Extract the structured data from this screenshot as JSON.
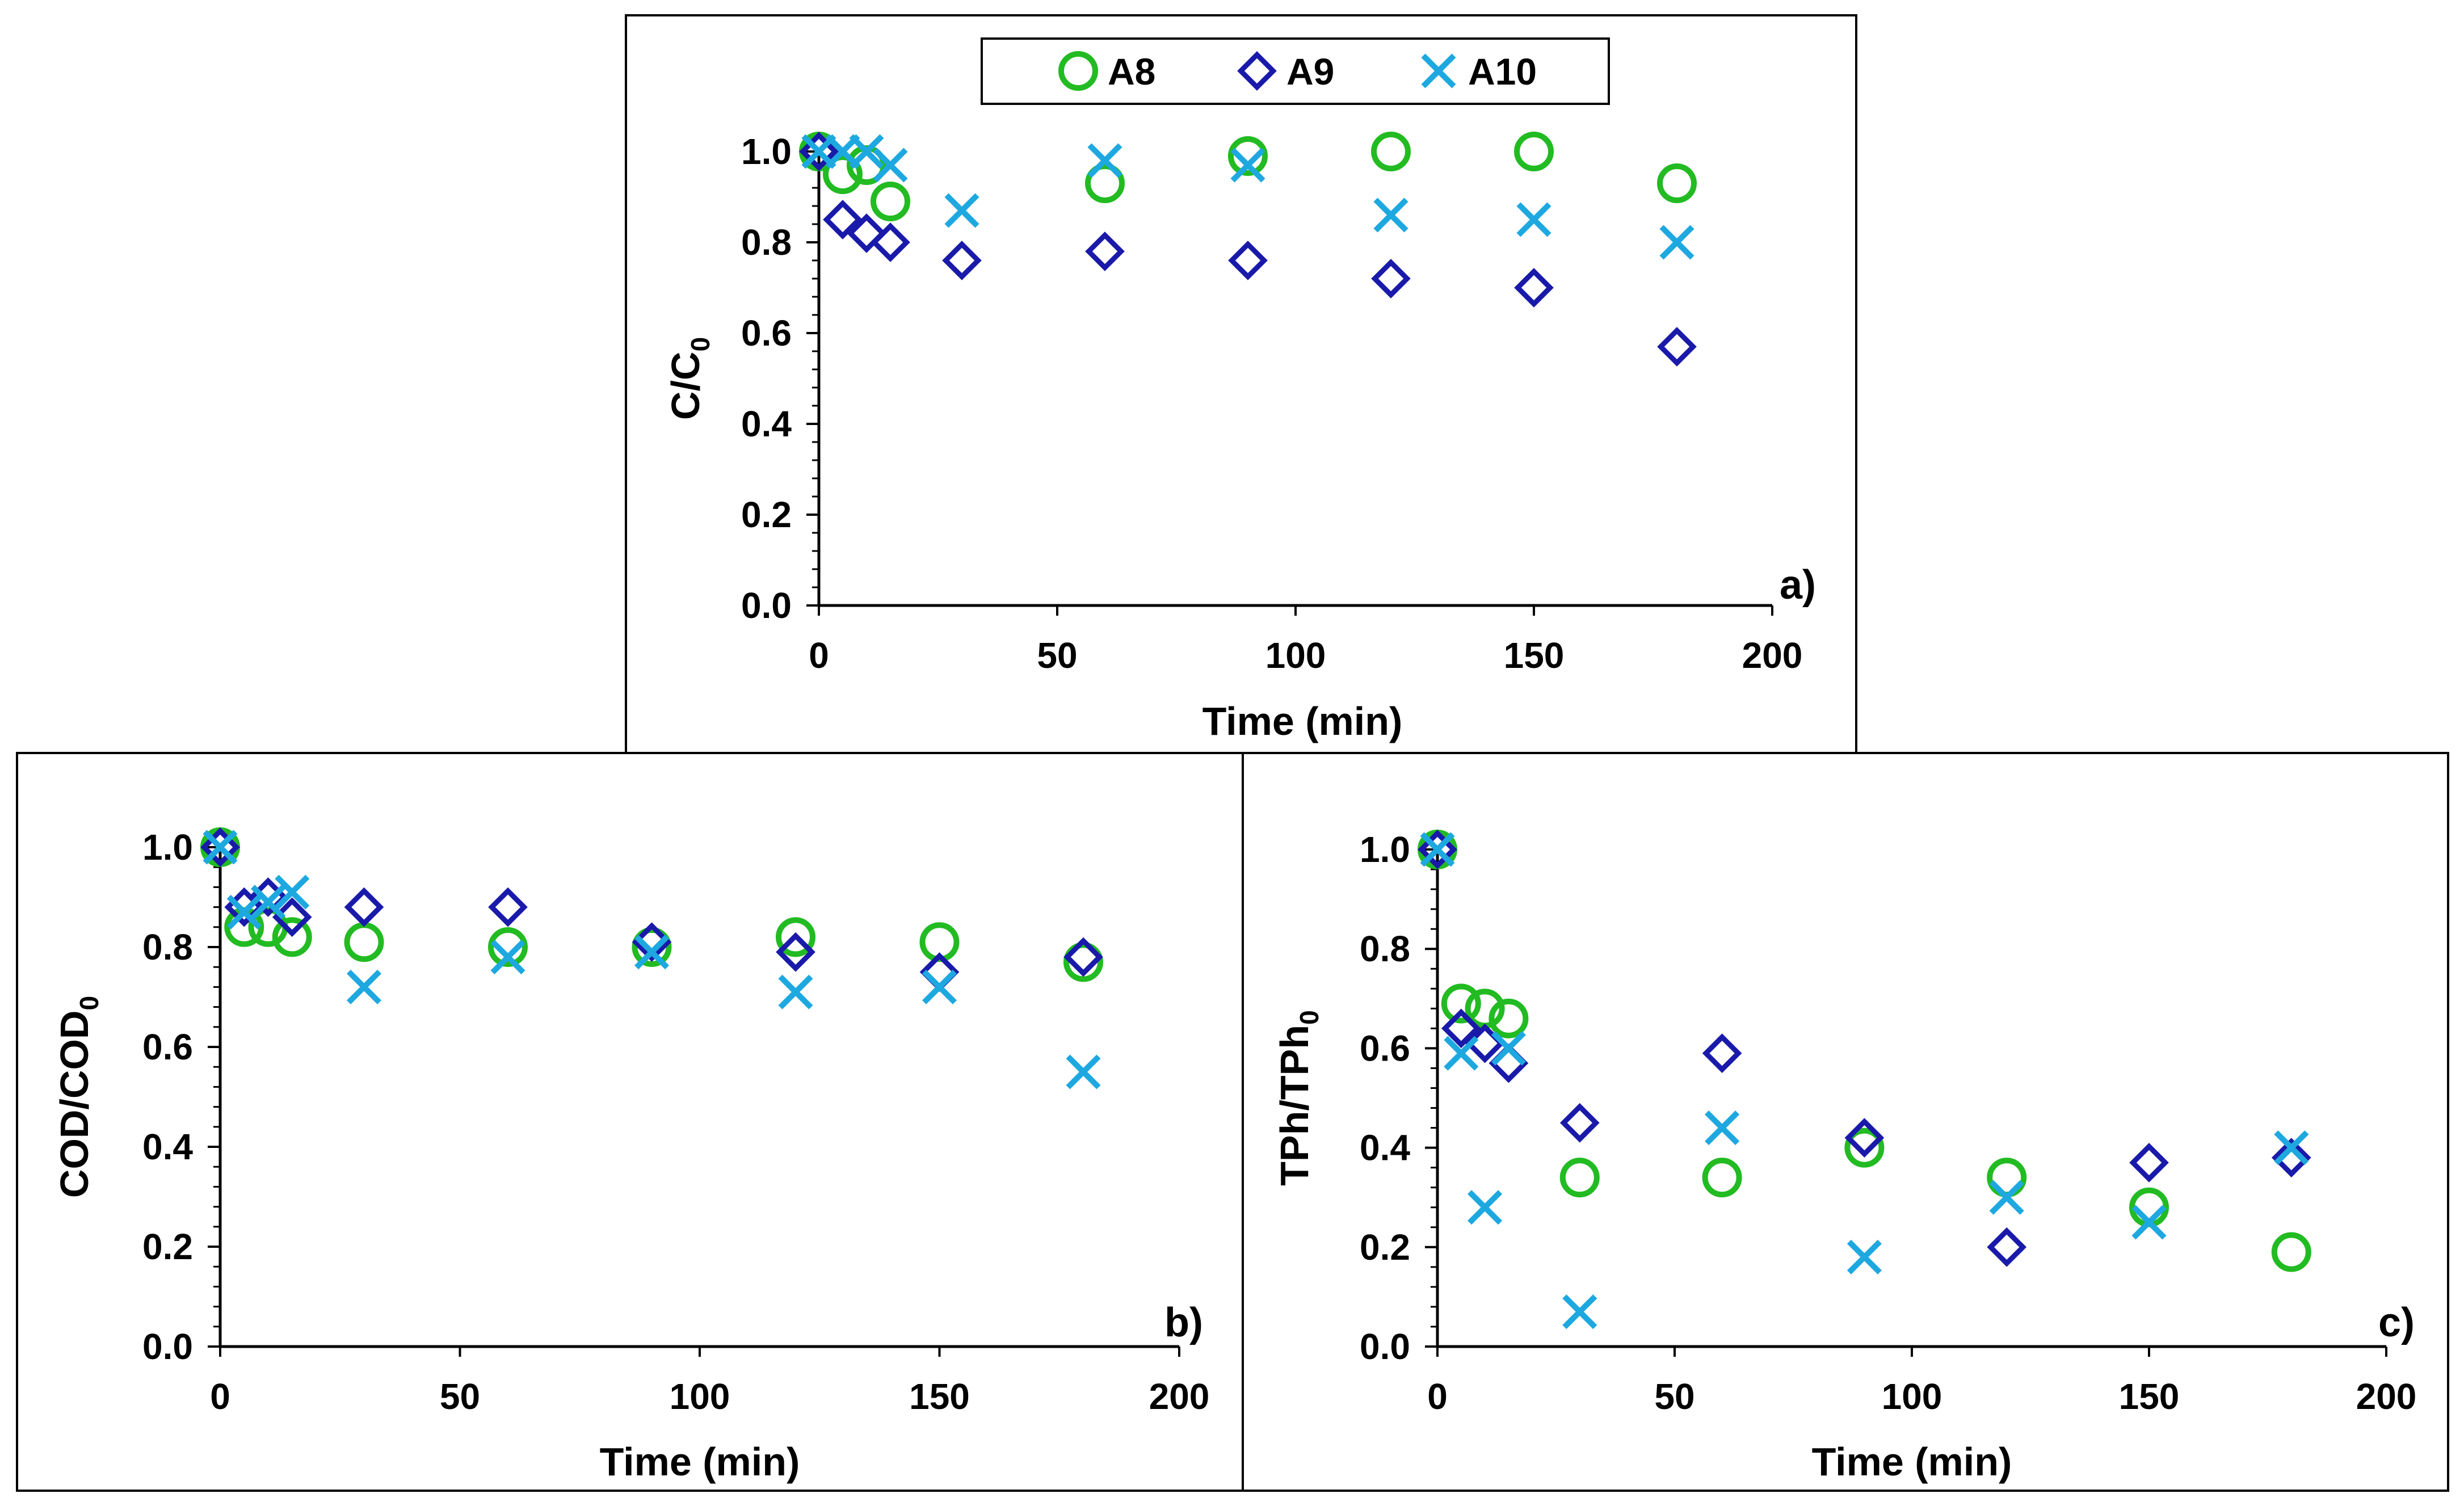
{
  "colors": {
    "A8": "#22bb22",
    "A9": "#1a1aaa",
    "A10": "#1ea8e0"
  },
  "legend": [
    {
      "name": "A8",
      "marker": "circle"
    },
    {
      "name": "A9",
      "marker": "diamond"
    },
    {
      "name": "A10",
      "marker": "cross"
    }
  ],
  "chart_data": [
    {
      "type": "scatter",
      "panel_label": "a)",
      "xlabel": "Time (min)",
      "ylabel": {
        "base": "C/C",
        "sub": "0"
      },
      "xlim": [
        0,
        200
      ],
      "ylim": [
        0,
        1.0
      ],
      "xticks": [
        "0",
        "50",
        "100",
        "150",
        "200"
      ],
      "yticks": [
        "0.0",
        "0.2",
        "0.4",
        "0.6",
        "0.8",
        "1.0"
      ],
      "series": [
        {
          "name": "A8",
          "marker": "circle",
          "x": [
            0,
            5,
            10,
            15,
            60,
            90,
            120,
            150,
            180
          ],
          "y": [
            1.0,
            0.95,
            0.97,
            0.89,
            0.93,
            0.99,
            1.0,
            1.0,
            0.93
          ]
        },
        {
          "name": "A9",
          "marker": "diamond",
          "x": [
            0,
            5,
            10,
            15,
            30,
            60,
            90,
            120,
            150,
            180
          ],
          "y": [
            1.0,
            0.85,
            0.82,
            0.8,
            0.76,
            0.78,
            0.76,
            0.72,
            0.7,
            0.57
          ]
        },
        {
          "name": "A10",
          "marker": "cross",
          "x": [
            0,
            5,
            10,
            15,
            30,
            60,
            90,
            120,
            150,
            180
          ],
          "y": [
            1.0,
            1.0,
            1.0,
            0.97,
            0.87,
            0.98,
            0.97,
            0.86,
            0.85,
            0.8
          ]
        }
      ]
    },
    {
      "type": "scatter",
      "panel_label": "b)",
      "xlabel": "Time (min)",
      "ylabel": {
        "base": "COD/COD",
        "sub": "0"
      },
      "xlim": [
        0,
        200
      ],
      "ylim": [
        0,
        1.0
      ],
      "xticks": [
        "0",
        "50",
        "100",
        "150",
        "200"
      ],
      "yticks": [
        "0.0",
        "0.2",
        "0.4",
        "0.6",
        "0.8",
        "1.0"
      ],
      "series": [
        {
          "name": "A8",
          "marker": "circle",
          "x": [
            0,
            5,
            10,
            15,
            30,
            60,
            90,
            120,
            150,
            180
          ],
          "y": [
            1.0,
            0.84,
            0.84,
            0.82,
            0.81,
            0.8,
            0.8,
            0.82,
            0.81,
            0.77
          ]
        },
        {
          "name": "A9",
          "marker": "diamond",
          "x": [
            0,
            5,
            10,
            15,
            30,
            60,
            90,
            120,
            150,
            180
          ],
          "y": [
            1.0,
            0.88,
            0.9,
            0.86,
            0.88,
            0.88,
            0.81,
            0.79,
            0.75,
            0.78
          ]
        },
        {
          "name": "A10",
          "marker": "cross",
          "x": [
            0,
            5,
            10,
            15,
            30,
            60,
            90,
            120,
            150,
            180
          ],
          "y": [
            1.0,
            0.87,
            0.89,
            0.91,
            0.72,
            0.78,
            0.79,
            0.71,
            0.72,
            0.55
          ]
        }
      ]
    },
    {
      "type": "scatter",
      "panel_label": "c)",
      "xlabel": "Time (min)",
      "ylabel": {
        "base": "TPh/TPh",
        "sub": "0"
      },
      "xlim": [
        0,
        200
      ],
      "ylim": [
        0,
        1.0
      ],
      "xticks": [
        "0",
        "50",
        "100",
        "150",
        "200"
      ],
      "yticks": [
        "0.0",
        "0.2",
        "0.4",
        "0.6",
        "0.8",
        "1.0"
      ],
      "series": [
        {
          "name": "A8",
          "marker": "circle",
          "x": [
            0,
            5,
            10,
            15,
            30,
            60,
            90,
            120,
            150,
            180
          ],
          "y": [
            1.0,
            0.69,
            0.68,
            0.66,
            0.34,
            0.34,
            0.4,
            0.34,
            0.28,
            0.19
          ]
        },
        {
          "name": "A9",
          "marker": "diamond",
          "x": [
            0,
            5,
            10,
            15,
            30,
            60,
            90,
            120,
            150,
            180
          ],
          "y": [
            1.0,
            0.64,
            0.61,
            0.57,
            0.45,
            0.59,
            0.42,
            0.2,
            0.37,
            0.38
          ]
        },
        {
          "name": "A10",
          "marker": "cross",
          "x": [
            0,
            5,
            10,
            15,
            30,
            60,
            90,
            120,
            150,
            180
          ],
          "y": [
            1.0,
            0.59,
            0.28,
            0.6,
            0.07,
            0.44,
            0.18,
            0.3,
            0.25,
            0.4
          ]
        }
      ]
    }
  ]
}
